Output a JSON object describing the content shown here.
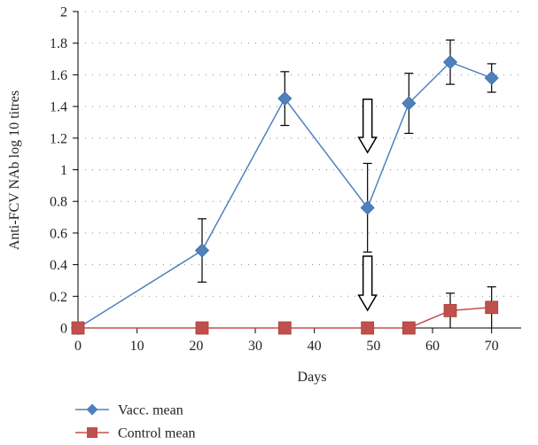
{
  "chart_data": {
    "type": "line",
    "title": "",
    "xlabel": "Days",
    "ylabel": "Anti-FCV NAb log 10 titres",
    "xlim": [
      0,
      75
    ],
    "ylim": [
      0,
      2
    ],
    "x_ticks": [
      0,
      10,
      20,
      30,
      40,
      50,
      60,
      70
    ],
    "y_ticks": [
      0,
      0.2,
      0.4,
      0.6,
      0.8,
      1,
      1.2,
      1.4,
      1.6,
      1.8,
      2
    ],
    "y_tick_labels": [
      "0",
      "0.2",
      "0.4",
      "0.6",
      "0.8",
      "1",
      "1.2",
      "1.4",
      "1.6",
      "1.8",
      "2"
    ],
    "grid": "horizontal dotted",
    "legend_position": "bottom-left",
    "series": [
      {
        "name": "Vacc. mean",
        "color": "#4f81bd",
        "marker": "diamond",
        "x": [
          0,
          21,
          35,
          49,
          56,
          63,
          70
        ],
        "y": [
          0,
          0.49,
          1.45,
          0.76,
          1.42,
          1.68,
          1.58
        ],
        "err": [
          0,
          0.2,
          0.17,
          0.28,
          0.19,
          0.14,
          0.09
        ]
      },
      {
        "name": "Control mean",
        "color": "#c0504d",
        "marker": "square",
        "x": [
          0,
          21,
          35,
          49,
          56,
          63,
          70
        ],
        "y": [
          0,
          0,
          0,
          0,
          0,
          0.11,
          0.13
        ],
        "err": [
          0,
          0,
          0,
          0,
          0,
          0.11,
          0.13
        ]
      }
    ],
    "annotations": [
      {
        "type": "down-arrow",
        "x": 49
      }
    ]
  }
}
